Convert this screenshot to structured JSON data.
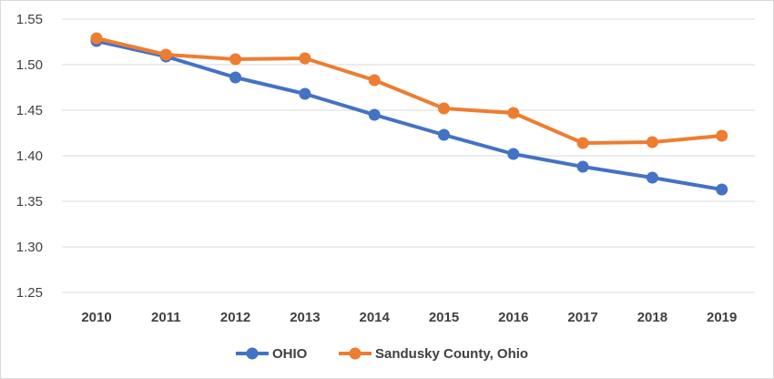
{
  "chart_data": {
    "type": "line",
    "title": "",
    "xlabel": "",
    "ylabel": "",
    "categories": [
      "2010",
      "2011",
      "2012",
      "2013",
      "2014",
      "2015",
      "2016",
      "2017",
      "2018",
      "2019"
    ],
    "ylim": [
      1.25,
      1.55
    ],
    "yticks": [
      "1.25",
      "1.30",
      "1.35",
      "1.40",
      "1.45",
      "1.50",
      "1.55"
    ],
    "grid": true,
    "legend_position": "bottom",
    "series": [
      {
        "name": "OHIO",
        "color": "#4472c4",
        "values": [
          1.526,
          1.509,
          1.486,
          1.468,
          1.445,
          1.423,
          1.402,
          1.388,
          1.376,
          1.363
        ]
      },
      {
        "name": "Sandusky County, Ohio",
        "color": "#ed7d31",
        "values": [
          1.529,
          1.511,
          1.506,
          1.507,
          1.483,
          1.452,
          1.447,
          1.414,
          1.415,
          1.422
        ]
      }
    ]
  }
}
